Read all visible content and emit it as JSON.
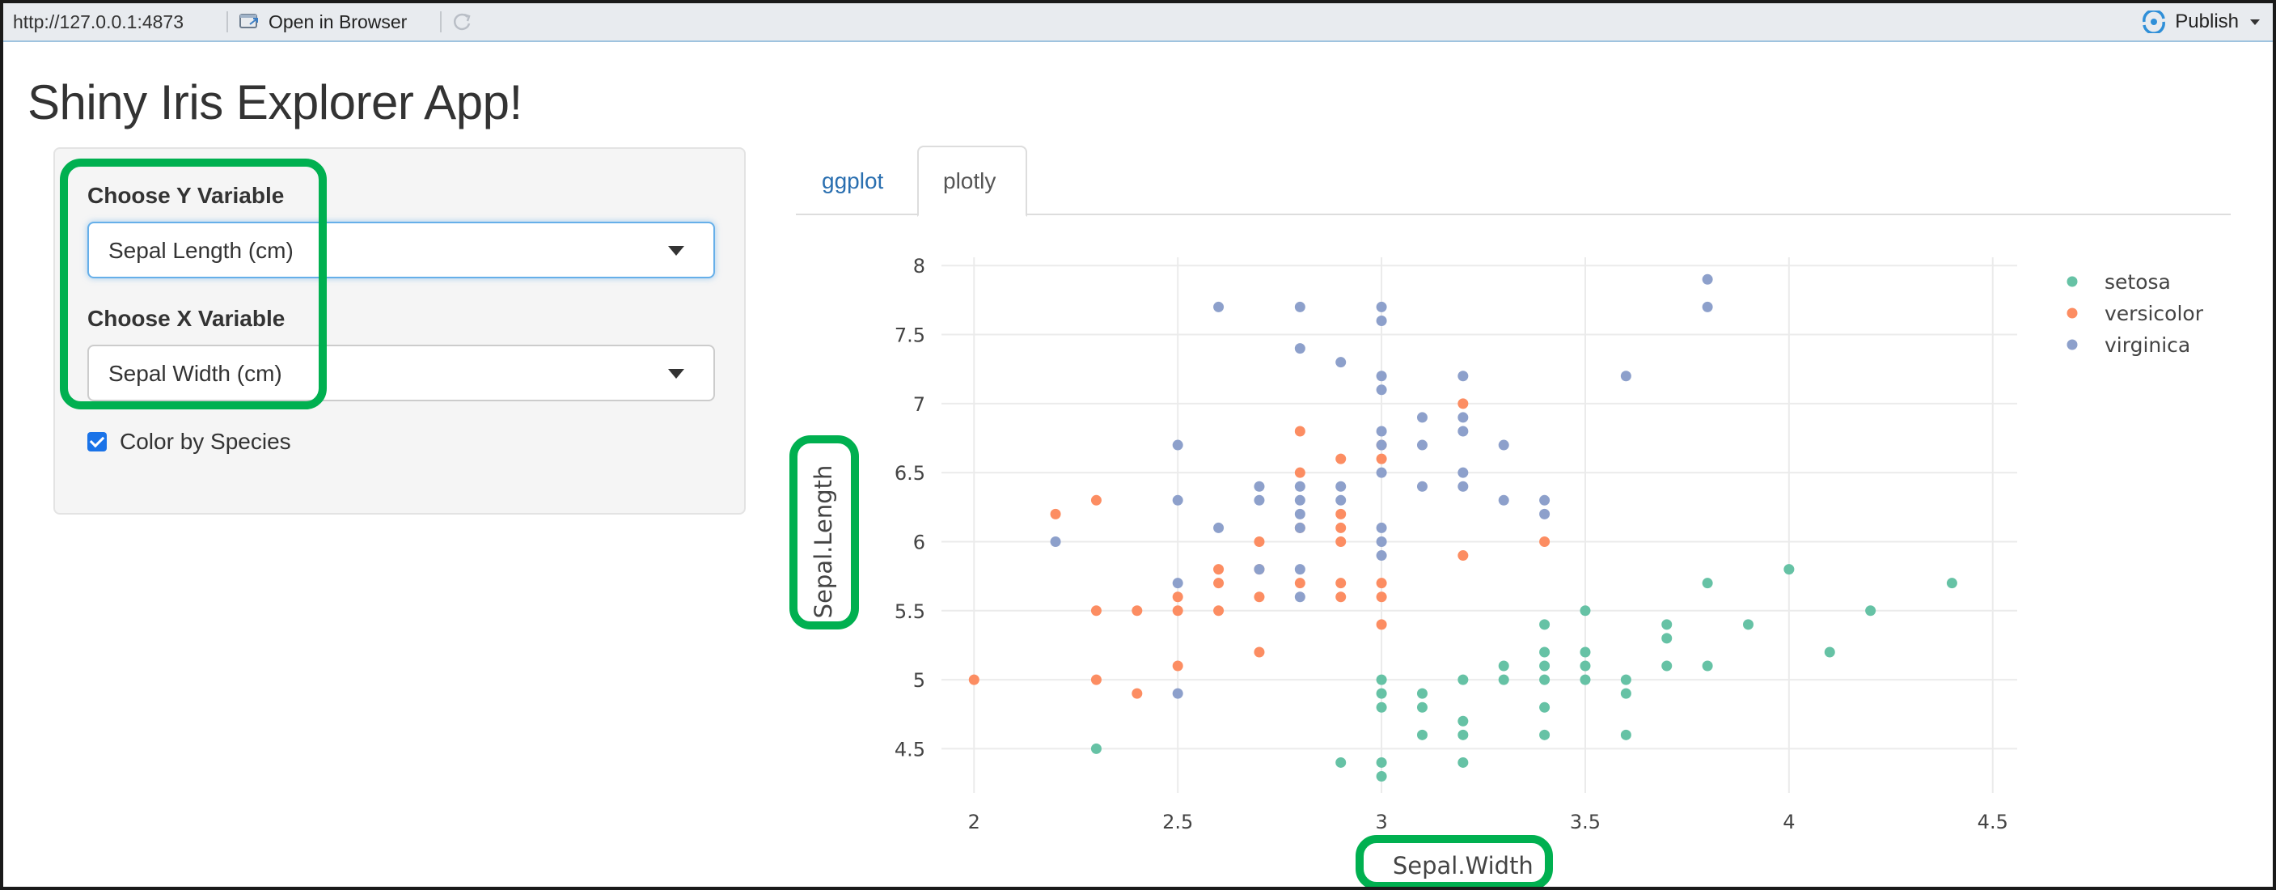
{
  "toolbar": {
    "url": "http://127.0.0.1:4873",
    "open_label": "Open in Browser",
    "publish_label": "Publish"
  },
  "app": {
    "title": "Shiny Iris Explorer App!"
  },
  "sidebar": {
    "y_label": "Choose Y Variable",
    "y_value": "Sepal Length (cm)",
    "x_label": "Choose X Variable",
    "x_value": "Sepal Width (cm)",
    "color_label": "Color by Species",
    "color_checked": true
  },
  "tabs": [
    {
      "label": "ggplot",
      "active": false
    },
    {
      "label": "plotly",
      "active": true
    }
  ],
  "colors": {
    "setosa": "#66c2a5",
    "versicolor": "#fc8d62",
    "virginica": "#8da0cb",
    "highlight": "#00b050",
    "link": "#2a6fb0"
  },
  "chart_data": {
    "type": "scatter",
    "xlabel": "Sepal.Width",
    "ylabel": "Sepal.Length",
    "xlim": [
      1.92,
      4.56
    ],
    "ylim": [
      4.18,
      8.06
    ],
    "x_ticks": [
      "2",
      "2.5",
      "3",
      "3.5",
      "4",
      "4.5"
    ],
    "y_ticks": [
      "4.5",
      "5",
      "5.5",
      "6",
      "6.5",
      "7",
      "7.5",
      "8"
    ],
    "grid": true,
    "legend_position": "top-right",
    "series": [
      {
        "name": "setosa",
        "color": "#66c2a5",
        "points": [
          [
            2.3,
            4.5
          ],
          [
            2.9,
            4.4
          ],
          [
            3.0,
            4.4
          ],
          [
            3.0,
            4.3
          ],
          [
            3.2,
            4.4
          ],
          [
            3.0,
            5.0
          ],
          [
            3.0,
            4.9
          ],
          [
            3.0,
            4.8
          ],
          [
            3.1,
            4.9
          ],
          [
            3.1,
            4.8
          ],
          [
            3.1,
            4.6
          ],
          [
            3.2,
            5.0
          ],
          [
            3.2,
            4.7
          ],
          [
            3.2,
            4.6
          ],
          [
            3.3,
            5.1
          ],
          [
            3.3,
            5.0
          ],
          [
            3.4,
            5.4
          ],
          [
            3.4,
            5.2
          ],
          [
            3.4,
            5.1
          ],
          [
            3.4,
            5.0
          ],
          [
            3.4,
            4.8
          ],
          [
            3.4,
            4.6
          ],
          [
            3.5,
            5.5
          ],
          [
            3.5,
            5.2
          ],
          [
            3.5,
            5.1
          ],
          [
            3.5,
            5.0
          ],
          [
            3.6,
            5.0
          ],
          [
            3.6,
            4.9
          ],
          [
            3.6,
            4.6
          ],
          [
            3.7,
            5.4
          ],
          [
            3.7,
            5.3
          ],
          [
            3.7,
            5.1
          ],
          [
            3.8,
            5.7
          ],
          [
            3.8,
            5.1
          ],
          [
            3.9,
            5.4
          ],
          [
            4.0,
            5.8
          ],
          [
            4.1,
            5.2
          ],
          [
            4.2,
            5.5
          ],
          [
            4.4,
            5.7
          ]
        ]
      },
      {
        "name": "versicolor",
        "color": "#fc8d62",
        "points": [
          [
            2.0,
            5.0
          ],
          [
            2.2,
            6.2
          ],
          [
            2.3,
            6.3
          ],
          [
            2.3,
            5.5
          ],
          [
            2.3,
            5.0
          ],
          [
            2.4,
            5.5
          ],
          [
            2.4,
            4.9
          ],
          [
            2.5,
            5.6
          ],
          [
            2.5,
            5.5
          ],
          [
            2.5,
            5.1
          ],
          [
            2.6,
            5.8
          ],
          [
            2.6,
            5.7
          ],
          [
            2.6,
            5.5
          ],
          [
            2.7,
            6.0
          ],
          [
            2.7,
            5.8
          ],
          [
            2.7,
            5.6
          ],
          [
            2.7,
            5.2
          ],
          [
            2.8,
            6.8
          ],
          [
            2.8,
            6.5
          ],
          [
            2.8,
            6.1
          ],
          [
            2.8,
            5.7
          ],
          [
            2.9,
            6.6
          ],
          [
            2.9,
            6.2
          ],
          [
            2.9,
            6.1
          ],
          [
            2.9,
            6.0
          ],
          [
            2.9,
            5.7
          ],
          [
            2.9,
            5.6
          ],
          [
            3.0,
            6.7
          ],
          [
            3.0,
            6.6
          ],
          [
            3.0,
            5.7
          ],
          [
            3.0,
            5.6
          ],
          [
            3.0,
            5.4
          ],
          [
            3.2,
            7.0
          ],
          [
            3.2,
            5.9
          ],
          [
            3.4,
            6.0
          ]
        ]
      },
      {
        "name": "virginica",
        "color": "#8da0cb",
        "points": [
          [
            2.2,
            6.0
          ],
          [
            2.5,
            6.7
          ],
          [
            2.5,
            6.3
          ],
          [
            2.5,
            5.7
          ],
          [
            2.5,
            4.9
          ],
          [
            2.6,
            7.7
          ],
          [
            2.6,
            6.1
          ],
          [
            2.7,
            6.4
          ],
          [
            2.7,
            6.3
          ],
          [
            2.7,
            5.8
          ],
          [
            2.8,
            7.7
          ],
          [
            2.8,
            7.4
          ],
          [
            2.8,
            6.4
          ],
          [
            2.8,
            6.3
          ],
          [
            2.8,
            6.2
          ],
          [
            2.8,
            6.1
          ],
          [
            2.8,
            5.8
          ],
          [
            2.8,
            5.6
          ],
          [
            2.9,
            7.3
          ],
          [
            2.9,
            6.4
          ],
          [
            2.9,
            6.3
          ],
          [
            3.0,
            7.7
          ],
          [
            3.0,
            7.6
          ],
          [
            3.0,
            7.2
          ],
          [
            3.0,
            7.1
          ],
          [
            3.0,
            6.8
          ],
          [
            3.0,
            6.7
          ],
          [
            3.0,
            6.5
          ],
          [
            3.0,
            6.1
          ],
          [
            3.0,
            6.0
          ],
          [
            3.0,
            5.9
          ],
          [
            3.1,
            6.9
          ],
          [
            3.1,
            6.7
          ],
          [
            3.1,
            6.4
          ],
          [
            3.2,
            7.2
          ],
          [
            3.2,
            6.9
          ],
          [
            3.2,
            6.8
          ],
          [
            3.2,
            6.5
          ],
          [
            3.2,
            6.4
          ],
          [
            3.3,
            6.7
          ],
          [
            3.3,
            6.3
          ],
          [
            3.4,
            6.3
          ],
          [
            3.4,
            6.2
          ],
          [
            3.6,
            7.2
          ],
          [
            3.8,
            7.9
          ],
          [
            3.8,
            7.7
          ]
        ]
      }
    ]
  }
}
